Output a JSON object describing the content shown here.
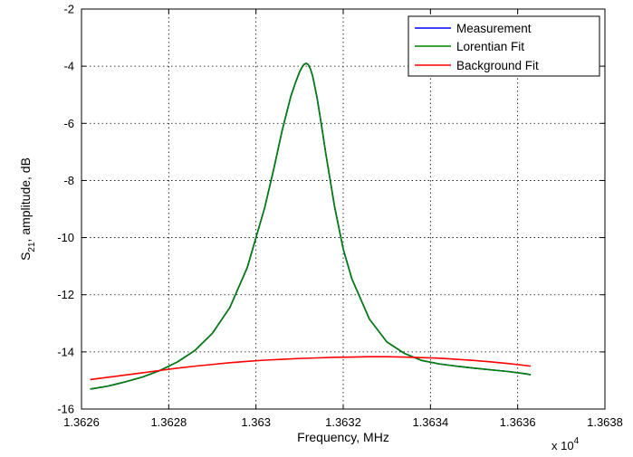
{
  "chart_data": {
    "type": "line",
    "title": "",
    "xlabel": "Frequency, MHz",
    "ylabel_main": "S",
    "ylabel_sub": "21",
    "ylabel_rest": ", amplitude, dB",
    "x_multiplier_base": "x 10",
    "x_multiplier_exp": "4",
    "xlim": [
      1.3626,
      1.3638
    ],
    "ylim": [
      -16,
      -2
    ],
    "x_ticks": [
      1.3626,
      1.3628,
      1.363,
      1.3632,
      1.3634,
      1.3636,
      1.3638
    ],
    "x_tick_labels": [
      "1.3626",
      "1.3628",
      "1.363",
      "1.3632",
      "1.3634",
      "1.3636",
      "1.3638"
    ],
    "y_ticks": [
      -16,
      -14,
      -12,
      -10,
      -8,
      -6,
      -4,
      -2
    ],
    "y_tick_labels": [
      "-16",
      "-14",
      "-12",
      "-10",
      "-8",
      "-6",
      "-4",
      "-2"
    ],
    "grid": true,
    "legend_position": "top-right",
    "series": [
      {
        "name": "Measurement",
        "color": "#0000ff",
        "x": [
          1.36262,
          1.36266,
          1.3627,
          1.36274,
          1.36278,
          1.36282,
          1.36286,
          1.3629,
          1.36294,
          1.36298,
          1.36302,
          1.36304,
          1.36306,
          1.36308,
          1.36309,
          1.3631,
          1.363105,
          1.36311,
          1.363115,
          1.36312,
          1.363125,
          1.36313,
          1.36314,
          1.36315,
          1.36316,
          1.36318,
          1.3632,
          1.36322,
          1.36326,
          1.3633,
          1.36334,
          1.36338,
          1.36342,
          1.36346,
          1.3635,
          1.36354,
          1.36358,
          1.36362,
          1.36363
        ],
        "y": [
          -15.3,
          -15.2,
          -15.05,
          -14.88,
          -14.65,
          -14.35,
          -13.95,
          -13.35,
          -12.45,
          -11.05,
          -8.95,
          -7.65,
          -6.25,
          -5.05,
          -4.6,
          -4.2,
          -4.05,
          -3.94,
          -3.9,
          -3.95,
          -4.1,
          -4.35,
          -5.1,
          -6.05,
          -7.05,
          -8.9,
          -10.4,
          -11.45,
          -12.85,
          -13.65,
          -14.05,
          -14.3,
          -14.42,
          -14.5,
          -14.57,
          -14.63,
          -14.69,
          -14.77,
          -14.8
        ]
      },
      {
        "name": "Lorentian Fit",
        "color": "#008000",
        "x": [
          1.36262,
          1.36266,
          1.3627,
          1.36274,
          1.36278,
          1.36282,
          1.36286,
          1.3629,
          1.36294,
          1.36298,
          1.36302,
          1.36304,
          1.36306,
          1.36308,
          1.36309,
          1.3631,
          1.363105,
          1.36311,
          1.363115,
          1.36312,
          1.363125,
          1.36313,
          1.36314,
          1.36315,
          1.36316,
          1.36318,
          1.3632,
          1.36322,
          1.36326,
          1.3633,
          1.36334,
          1.36338,
          1.36342,
          1.36346,
          1.3635,
          1.36354,
          1.36358,
          1.36362,
          1.36363
        ],
        "y": [
          -15.3,
          -15.2,
          -15.05,
          -14.88,
          -14.65,
          -14.35,
          -13.95,
          -13.35,
          -12.45,
          -11.05,
          -8.95,
          -7.65,
          -6.25,
          -5.05,
          -4.6,
          -4.2,
          -4.05,
          -3.94,
          -3.9,
          -3.95,
          -4.1,
          -4.35,
          -5.1,
          -6.05,
          -7.05,
          -8.9,
          -10.4,
          -11.45,
          -12.85,
          -13.65,
          -14.05,
          -14.3,
          -14.42,
          -14.5,
          -14.57,
          -14.63,
          -14.69,
          -14.77,
          -14.8
        ]
      },
      {
        "name": "Background Fit",
        "color": "#ff0000",
        "x": [
          1.36262,
          1.36266,
          1.3627,
          1.36274,
          1.36278,
          1.36282,
          1.36286,
          1.3629,
          1.36294,
          1.36298,
          1.36302,
          1.36306,
          1.3631,
          1.36314,
          1.36318,
          1.36322,
          1.36326,
          1.3633,
          1.36334,
          1.36338,
          1.36342,
          1.36346,
          1.3635,
          1.36354,
          1.36358,
          1.36362,
          1.36363
        ],
        "y": [
          -14.97,
          -14.89,
          -14.81,
          -14.73,
          -14.65,
          -14.57,
          -14.5,
          -14.44,
          -14.38,
          -14.33,
          -14.29,
          -14.26,
          -14.23,
          -14.21,
          -14.19,
          -14.18,
          -14.17,
          -14.17,
          -14.18,
          -14.2,
          -14.22,
          -14.26,
          -14.3,
          -14.35,
          -14.41,
          -14.48,
          -14.5
        ]
      }
    ]
  }
}
